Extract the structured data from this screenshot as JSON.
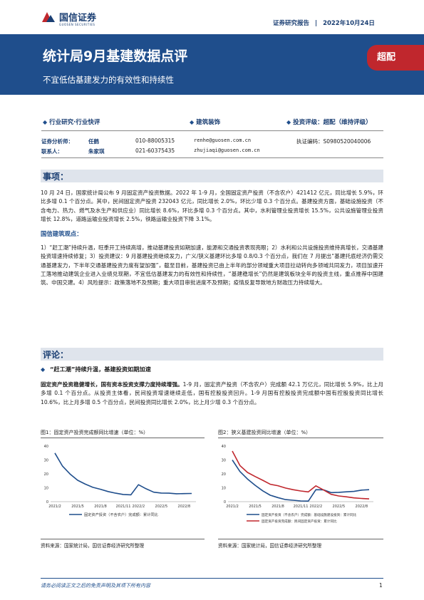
{
  "header": {
    "logo_cn": "国信证券",
    "logo_en": "GUOSEN SECURITIES",
    "report_type": "证券研究报告",
    "date": "2022年10月24日"
  },
  "banner": {
    "title": "统计局9月基建数据点评",
    "subtitle": "不宜低估基建发力的有效性和持续性",
    "rating_badge": "超配",
    "colors": {
      "banner": "#1f4e8c",
      "badge": "#c0272d"
    }
  },
  "meta": {
    "category": "行业研究·行业快评",
    "industry": "建筑装饰",
    "rating": "投资评级：超配（维持评级）"
  },
  "analysts": [
    {
      "role": "证券分析师：",
      "name": "任鹤",
      "phone": "010-88005315",
      "email": "renhe@guosen.com.cn",
      "cert": "执证编码：S0980520040006"
    },
    {
      "role": "联系人：",
      "name": "朱家琪",
      "phone": "021-60375435",
      "email": "zhujiaqi@guosen.com.cn",
      "cert": ""
    }
  ],
  "section_event": {
    "title": "事项：",
    "body": "10 月 24 日，国家统计局公布 9 月固定资产投资数据。2022 年 1-9 月，全国固定资产投资（不含农户）421412 亿元，同比增长 5.9%，环比多增 0.1 个百分点。其中，民间固定资产投资 232043 亿元，同比增长 2.0%，环比少增 0.3 个百分点。基建投资方面，基础设施投资（不含电力、热力、燃气及水生产和供应业）同比增长 8.6%，环比多增 0.3 个百分点。其中，水利管理业投资增长 15.5%，公共设施管理业投资增长 12.8%，道路运输业投资增长 2.5%，铁路运输业投资下降 3.1%。",
    "sub_title": "国信建筑观点：",
    "opinion": "1）“赶工潮”持续升温，旺季开工持续高增，推动基建投资如期加速，能源和交通投资表现亮眼；2）水利和公共设施投资维持高增长，交通基建投资增速持续修复；3）投资建议：9 月基建投资继续发力，广义/狭义基建环比多增 0.8/0.3 个百分点，我们在 7 月提出“基建托底经济仍需交通基建发力，下半年交通基建投资力度有望加强”，截至目前，基建投资已由上半年的部分领域重大项目拉动转向多领域共同发力，项目加速开工落地推动建筑企业进入业绩兑现期，不宜低估基建发力的有效性和持续性，“基建稳增长”仍然是建筑板块全年的投资主线，重点推荐中国建筑、中国交建。4）风险提示：政策落地不及预期；重大项目审批进度不及预期；疫情反复导致地方财政压力持续增大。"
  },
  "section_comment": {
    "title": "评论：",
    "bullet": "“赶工潮”持续升温，基建投资如期加速",
    "lead_bold": "固定资产投资稳健增长，国有资本投资支撑力度持续增强。",
    "body": "1-9 月，固定资产投资（不含农户）完成额 42.1 万亿元，同比增长 5.9%，比上月多增 0.1 个百分点。从投资主体看，民间投资增速继续走低，国有控股投资回升。1-9 月国有控股投资完成额中国有控股投资同比增长 10.6%，比上月多增 0.5 个百分点，民间投资同比增长 2.0%，比上月少增 0.3 个百分点。"
  },
  "figures": [
    {
      "title": "图1：固定资产投资完成额同比增速（单位：%）",
      "source": "资料来源：国家统计局，国信证券经济研究所整理",
      "chart_data": {
        "type": "line",
        "x": [
          "2021/2",
          "2021/3",
          "2021/4",
          "2021/5",
          "2021/6",
          "2021/7",
          "2021/8",
          "2021/9",
          "2021/10",
          "2021/11",
          "2021/12",
          "2022/2",
          "2022/3",
          "2022/4",
          "2022/5",
          "2022/6",
          "2022/7",
          "2022/8",
          "2022/9"
        ],
        "xticks": [
          "2021/2",
          "2021/5",
          "2021/8",
          "2021/11",
          "2022/2",
          "2022/5",
          "2022/8"
        ],
        "ylim": [
          0,
          40
        ],
        "yticks": [
          0,
          10,
          20,
          30,
          40
        ],
        "series": [
          {
            "name": "固定资产投资（不含农户）完成额：累计同比",
            "color": "#1f4e8c",
            "values": [
              35.0,
              25.6,
              19.9,
              15.4,
              12.6,
              10.3,
              8.9,
              7.3,
              6.1,
              5.2,
              4.9,
              12.2,
              9.3,
              6.8,
              6.2,
              6.1,
              5.7,
              5.8,
              5.9
            ]
          }
        ]
      }
    },
    {
      "title": "图2：狭义基建投资同比增速（单位：%）",
      "source": "资料来源：国家统计局，国信证券经济研究所整理",
      "chart_data": {
        "type": "line",
        "x": [
          "2021/2",
          "2021/3",
          "2021/4",
          "2021/5",
          "2021/6",
          "2021/7",
          "2021/8",
          "2021/9",
          "2021/10",
          "2021/11",
          "2021/12",
          "2022/2",
          "2022/3",
          "2022/4",
          "2022/5",
          "2022/6",
          "2022/7",
          "2022/8",
          "2022/9"
        ],
        "xticks": [
          "2021/2",
          "2021/5",
          "2021/8",
          "2021/11",
          "2022/2",
          "2022/5",
          "2022/8"
        ],
        "ylim": [
          0,
          40
        ],
        "yticks": [
          0,
          10,
          20,
          30,
          40
        ],
        "series": [
          {
            "name": "固定资产投资（不含农户）完成额：基础设施建设投资：累计同比",
            "color": "#1f4e8c",
            "values": [
              30.0,
              21.7,
              16.3,
              11.8,
              7.8,
              4.6,
              2.9,
              1.5,
              1.0,
              0.5,
              0.4,
              8.6,
              8.5,
              6.5,
              6.7,
              7.1,
              7.4,
              8.3,
              8.6
            ]
          },
          {
            "name": "固定资产投资完成额：民间固定资产投资：累计同比",
            "color": "#c0272d",
            "values": [
              36.4,
              26.0,
              21.0,
              18.1,
              15.4,
              12.5,
              11.5,
              9.8,
              8.6,
              7.7,
              7.0,
              11.4,
              8.4,
              5.3,
              4.1,
              3.5,
              2.7,
              2.3,
              2.0
            ]
          }
        ]
      }
    }
  ],
  "footer": {
    "disclaimer": "请务必阅读正文之后的免责声明及其项下所有内容",
    "page": "1"
  }
}
